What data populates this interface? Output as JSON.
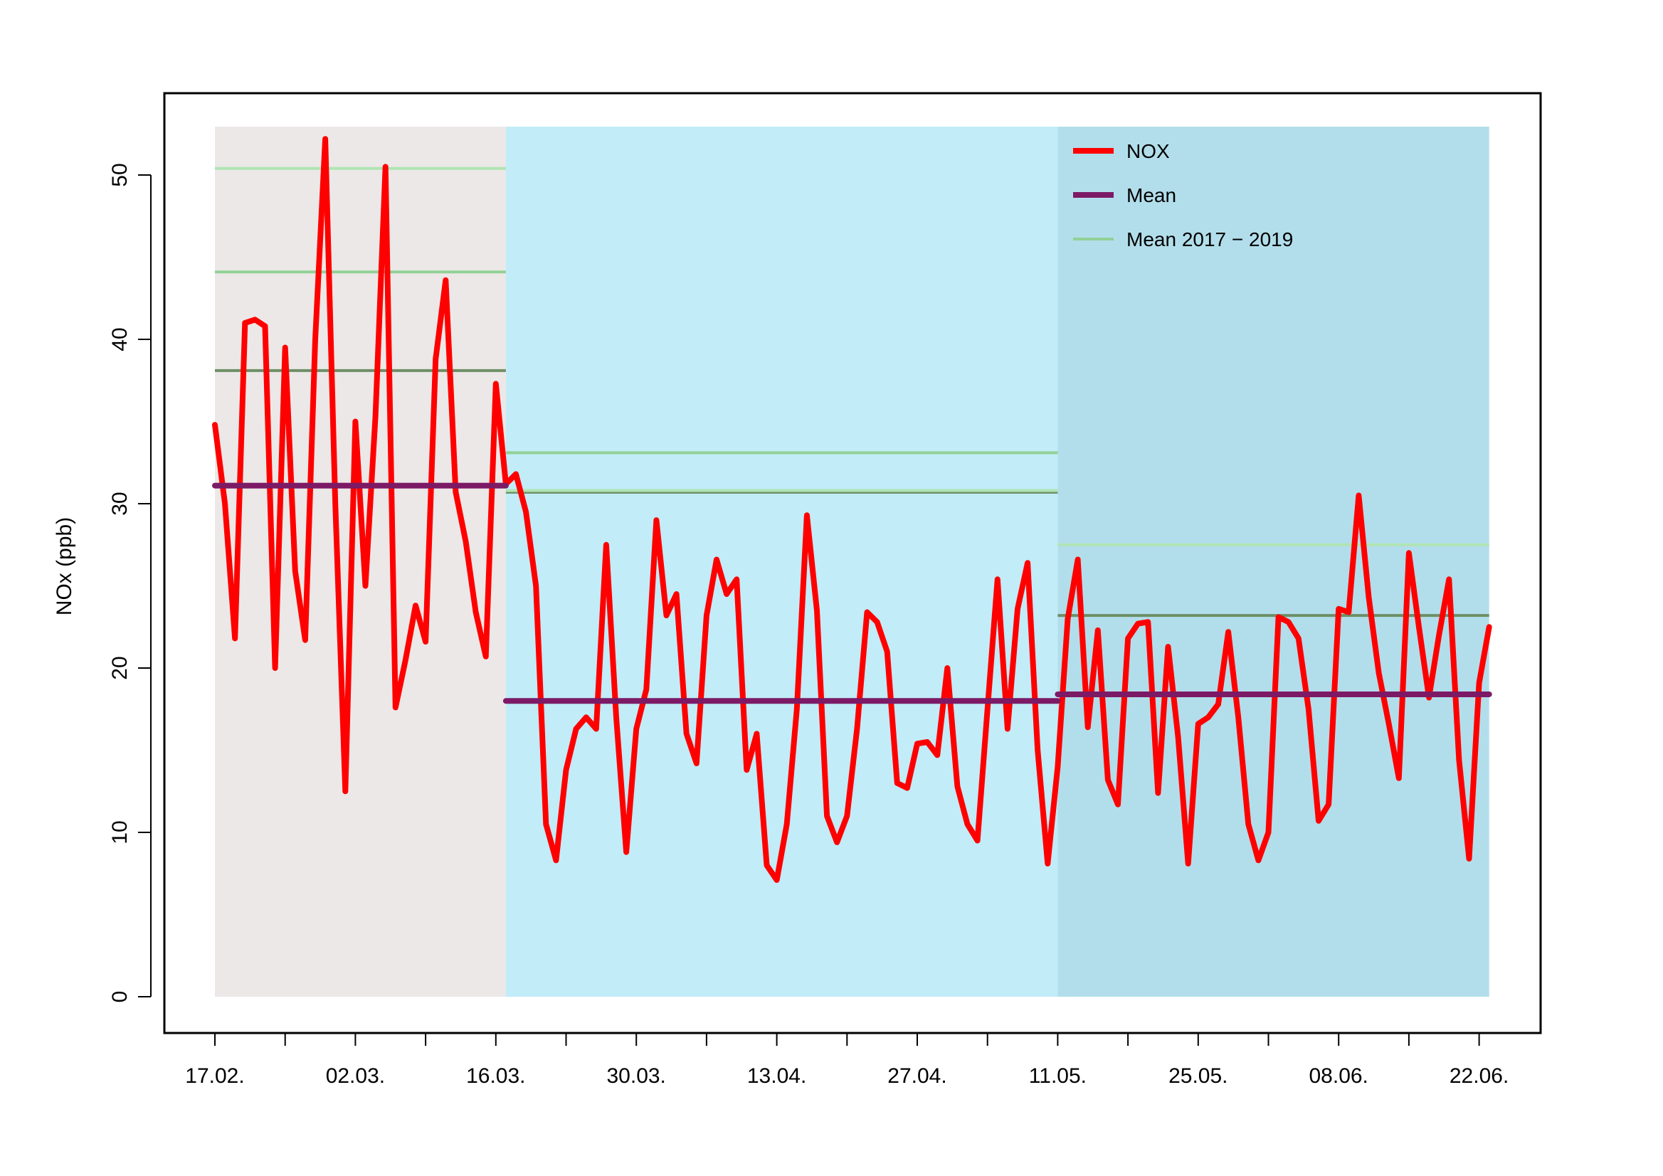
{
  "chart_data": {
    "type": "line",
    "ylabel": "NOx (ppb)",
    "ylim": [
      -2,
      55
    ],
    "yticks": [
      0,
      10,
      20,
      30,
      40,
      50
    ],
    "x_tick_labels": [
      "17.02.",
      "02.03.",
      "16.03.",
      "30.03.",
      "13.04.",
      "27.04.",
      "11.05.",
      "25.05.",
      "08.06.",
      "22.06."
    ],
    "x_start_date": "17.02.",
    "legend": [
      "NOX",
      "Mean",
      "Mean 2017 − 2019"
    ],
    "legend_position": "top-right",
    "periods": [
      {
        "start_day": 0,
        "end_day": 29,
        "color": "#ece8e7"
      },
      {
        "start_day": 29,
        "end_day": 84,
        "color": "#c1ecf8"
      },
      {
        "start_day": 84,
        "end_day": 127,
        "color": "#b2deeb"
      }
    ],
    "series": [
      {
        "name": "NOX",
        "color": "#ff0000",
        "x": [
          0,
          1,
          2,
          3,
          4,
          5,
          6,
          7,
          8,
          9,
          10,
          11,
          12,
          13,
          14,
          15,
          16,
          17,
          18,
          19,
          20,
          21,
          22,
          23,
          24,
          25,
          26,
          27,
          28,
          29,
          30,
          31,
          32,
          33,
          34,
          35,
          36,
          37,
          38,
          39,
          40,
          41,
          42,
          43,
          44,
          45,
          46,
          47,
          48,
          49,
          50,
          51,
          52,
          53,
          54,
          55,
          56,
          57,
          58,
          59,
          60,
          61,
          62,
          63,
          64,
          65,
          66,
          67,
          68,
          69,
          70,
          71,
          72,
          73,
          74,
          75,
          76,
          77,
          78,
          79,
          80,
          81,
          82,
          83,
          84,
          85,
          86,
          87,
          88,
          89,
          90,
          91,
          92,
          93,
          94,
          95,
          96,
          97,
          98,
          99,
          100,
          101,
          102,
          103,
          104,
          105,
          106,
          107,
          108,
          109,
          110,
          111,
          112,
          113,
          114,
          115,
          116,
          117,
          118,
          119,
          120,
          121,
          122,
          123,
          124,
          125,
          126,
          127
        ],
        "values": [
          34.8,
          30,
          21.8,
          41,
          41.2,
          40.8,
          20,
          39.5,
          25.9,
          21.7,
          40,
          52.2,
          30,
          12.5,
          35,
          25,
          35.3,
          50.5,
          17.6,
          20.5,
          23.8,
          21.6,
          38.8,
          43.6,
          30.7,
          27.7,
          23.4,
          20.7,
          37.3,
          31.2,
          31.8,
          29.5,
          25,
          10.5,
          8.3,
          13.8,
          16.3,
          17,
          16.3,
          27.5,
          17,
          8.8,
          16.3,
          18.7,
          29,
          23.2,
          24.5,
          16,
          14.2,
          23.2,
          26.6,
          24.5,
          25.4,
          13.8,
          16,
          8,
          7.1,
          10.5,
          17.5,
          29.3,
          23.5,
          11,
          9.4,
          11,
          16.3,
          23.4,
          22.8,
          21,
          13,
          12.7,
          15.4,
          15.5,
          14.7,
          20,
          12.8,
          10.5,
          9.5,
          17.5,
          25.4,
          16.3,
          23.6,
          26.4,
          15,
          8.1,
          14,
          23,
          26.6,
          16.4,
          22.3,
          13.2,
          11.7,
          21.8,
          22.7,
          22.8,
          12.4,
          21.3,
          15.8,
          8.1,
          16.6,
          17,
          17.8,
          22.2,
          17,
          10.5,
          8.3,
          10,
          23.1,
          22.8,
          21.8,
          17.5,
          10.7,
          11.7,
          23.6,
          23.4,
          30.5,
          24.3,
          19.7,
          16.6,
          13.3,
          27,
          22.5,
          18.2,
          22,
          25.4,
          14.4,
          8.4,
          19.1,
          22.5
        ]
      },
      {
        "name": "Mean",
        "color": "#7c1a66",
        "segments": [
          {
            "start_day": 0,
            "end_day": 29,
            "value": 31.1
          },
          {
            "start_day": 29,
            "end_day": 84,
            "value": 18.0
          },
          {
            "start_day": 84,
            "end_day": 127,
            "value": 18.4
          }
        ]
      },
      {
        "name": "Mean 2017 − 2019",
        "colors": [
          "#b0e4b4",
          "#92d196",
          "#6d8f66"
        ],
        "segments": [
          {
            "start_day": 0,
            "end_day": 29,
            "value": 50.4,
            "shade": 0
          },
          {
            "start_day": 0,
            "end_day": 29,
            "value": 44.1,
            "shade": 1
          },
          {
            "start_day": 0,
            "end_day": 29,
            "value": 38.1,
            "shade": 2
          },
          {
            "start_day": 29,
            "end_day": 84,
            "value": 33.1,
            "shade": 1
          },
          {
            "start_day": 29,
            "end_day": 84,
            "value": 30.7,
            "shade": 2
          },
          {
            "start_day": 29,
            "end_day": 84,
            "value": 30.8,
            "shade": 0
          },
          {
            "start_day": 84,
            "end_day": 127,
            "value": 27.5,
            "shade": 0
          },
          {
            "start_day": 84,
            "end_day": 127,
            "value": 23.2,
            "shade": 2
          }
        ]
      }
    ]
  }
}
